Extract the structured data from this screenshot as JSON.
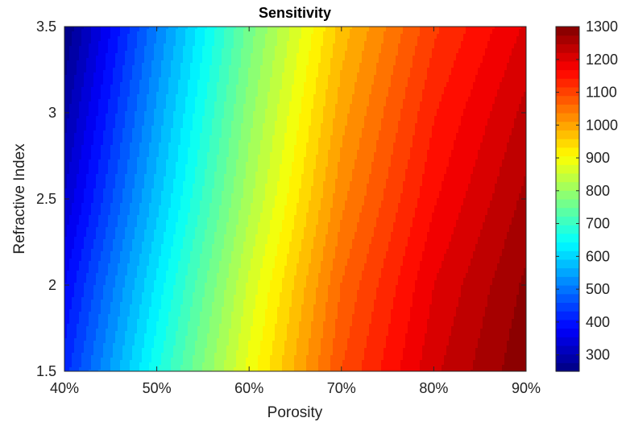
{
  "chart_data": {
    "type": "heatmap",
    "subtype": "filled contour",
    "title": "Sensitivity",
    "xlabel": "Porosity",
    "ylabel": "Refractive Index",
    "x": {
      "range": [
        40,
        90
      ],
      "unit": "%",
      "ticks": [
        40,
        50,
        60,
        70,
        80,
        90
      ],
      "tick_labels": [
        "40%",
        "50%",
        "60%",
        "70%",
        "80%",
        "90%"
      ]
    },
    "y": {
      "range": [
        1.5,
        3.5
      ],
      "ticks": [
        1.5,
        2,
        2.5,
        3,
        3.5
      ],
      "tick_labels": [
        "1.5",
        "2",
        "2.5",
        "3",
        "3.5"
      ]
    },
    "colorbar": {
      "range": [
        250,
        1300
      ],
      "ticks": [
        300,
        400,
        500,
        600,
        700,
        800,
        900,
        1000,
        1100,
        1200,
        1300
      ],
      "tick_labels": [
        "300",
        "400",
        "500",
        "600",
        "700",
        "800",
        "900",
        "1000",
        "1100",
        "1200",
        "1300"
      ],
      "colormap": "jet",
      "location": "right"
    },
    "z_samples": {
      "x": [
        40,
        50,
        60,
        70,
        80,
        90
      ],
      "rows": [
        {
          "y": 3.5,
          "z": [
            250,
            510,
            760,
            970,
            1110,
            1200
          ]
        },
        {
          "y": 3.0,
          "z": [
            290,
            545,
            790,
            1000,
            1140,
            1230
          ]
        },
        {
          "y": 2.5,
          "z": [
            330,
            580,
            820,
            1030,
            1165,
            1255
          ]
        },
        {
          "y": 2.0,
          "z": [
            380,
            625,
            860,
            1065,
            1195,
            1280
          ]
        },
        {
          "y": 1.5,
          "z": [
            420,
            665,
            890,
            1090,
            1215,
            1295
          ]
        }
      ]
    },
    "contour_levels": 40,
    "grid": false,
    "legend": "none"
  }
}
